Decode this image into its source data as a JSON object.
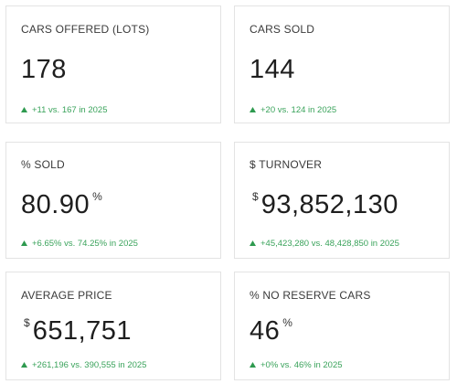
{
  "cards": [
    {
      "label": "CARS OFFERED (LOTS)",
      "value": "178",
      "delta": "+11 vs. 167 in 2025"
    },
    {
      "label": "CARS SOLD",
      "value": "144",
      "delta": "+20 vs. 124 in 2025"
    },
    {
      "label": "% SOLD",
      "value": "80.90",
      "suffix": "%",
      "delta": "+6.65% vs. 74.25% in 2025"
    },
    {
      "label": "$ TURNOVER",
      "prefix": "$",
      "value": "93,852,130",
      "delta": "+45,423,280 vs. 48,428,850 in 2025"
    },
    {
      "label": "AVERAGE PRICE",
      "prefix": "$",
      "value": "651,751",
      "delta": "+261,196 vs. 390,555 in 2025"
    },
    {
      "label": "% NO RESERVE CARS",
      "value": "46",
      "suffix": "%",
      "delta": "+0% vs. 46% in 2025"
    }
  ]
}
